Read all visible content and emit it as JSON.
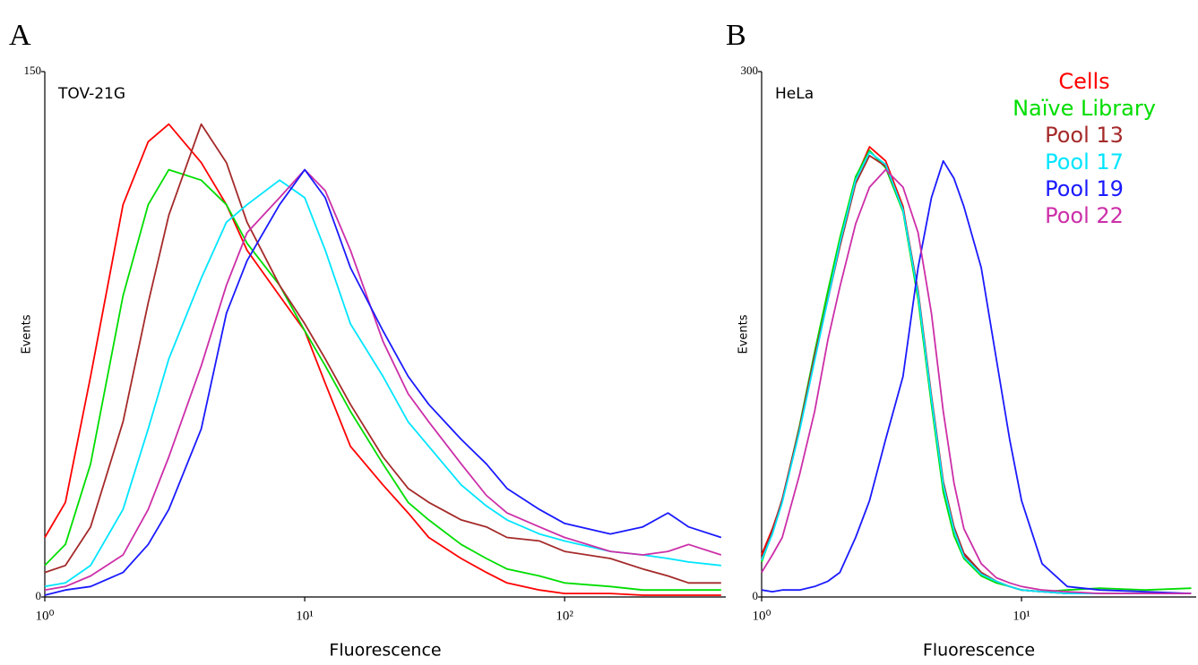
{
  "chart_data": [
    {
      "type": "line",
      "panel_label": "A",
      "annotation": "TOV-21G",
      "xlabel": "Fluorescence",
      "ylabel": "Events",
      "xscale": "log",
      "xlim": [
        1,
        417
      ],
      "ylim": [
        0,
        150
      ],
      "xticks": [
        {
          "value": 1,
          "label": "10⁰"
        },
        {
          "value": 10,
          "label": "10¹"
        },
        {
          "value": 100,
          "label": "10²"
        }
      ],
      "yticks": [
        0,
        150
      ],
      "x": [
        1,
        1.2,
        1.5,
        2,
        2.5,
        3,
        4,
        5,
        6,
        8,
        10,
        12,
        15,
        20,
        25,
        30,
        40,
        50,
        60,
        80,
        100,
        150,
        200,
        250,
        300,
        400
      ],
      "series": [
        {
          "color": "#ff0000",
          "values": [
            17,
            27,
            63,
            112,
            130,
            135,
            124,
            112,
            99,
            86,
            76,
            61,
            43,
            32,
            24,
            17,
            11,
            7,
            4,
            2,
            1,
            1,
            0.5,
            0.5,
            0.5,
            0.5
          ]
        },
        {
          "color": "#00dd00",
          "values": [
            9,
            15,
            38,
            86,
            112,
            122,
            119,
            112,
            101,
            89,
            76,
            66,
            53,
            38,
            27,
            22,
            15,
            11,
            8,
            6,
            4,
            3,
            2,
            2,
            2,
            2
          ]
        },
        {
          "color": "#a52a2a",
          "values": [
            7,
            9,
            20,
            50,
            84,
            109,
            135,
            124,
            107,
            89,
            78,
            68,
            55,
            40,
            31,
            27,
            22,
            20,
            17,
            16,
            13,
            11,
            8,
            6,
            4,
            4
          ]
        },
        {
          "color": "#00e5ff",
          "values": [
            3,
            4,
            9,
            25,
            48,
            68,
            91,
            107,
            112,
            119,
            114,
            99,
            78,
            63,
            50,
            43,
            32,
            26,
            22,
            18,
            16,
            13,
            12,
            11,
            10,
            9
          ]
        },
        {
          "color": "#cc2fa8",
          "values": [
            2,
            3,
            6,
            12,
            25,
            40,
            66,
            89,
            104,
            114,
            122,
            116,
            99,
            73,
            58,
            50,
            38,
            29,
            24,
            20,
            17,
            13,
            12,
            13,
            15,
            12
          ]
        },
        {
          "color": "#1a1aff",
          "values": [
            0.5,
            2,
            3,
            7,
            15,
            25,
            48,
            81,
            96,
            112,
            122,
            114,
            94,
            76,
            63,
            55,
            45,
            38,
            31,
            25,
            21,
            18,
            20,
            24,
            20,
            17
          ]
        }
      ]
    },
    {
      "type": "line",
      "panel_label": "B",
      "annotation": "HeLa",
      "xlabel": "Fluorescence",
      "ylabel": "Events",
      "xscale": "log",
      "xlim": [
        1,
        47
      ],
      "ylim": [
        0,
        300
      ],
      "xticks": [
        {
          "value": 1,
          "label": "10⁰"
        },
        {
          "value": 10,
          "label": "10¹"
        }
      ],
      "yticks": [
        0,
        300
      ],
      "legend": "upper right",
      "x": [
        1,
        1.1,
        1.2,
        1.4,
        1.6,
        1.8,
        2,
        2.3,
        2.6,
        3,
        3.5,
        4,
        4.5,
        5,
        5.5,
        6,
        7,
        8,
        9,
        10,
        12,
        15,
        20,
        30,
        45
      ],
      "series": [
        {
          "name": "Cells",
          "color": "#ff0000",
          "values": [
            24,
            39,
            55,
            96,
            136,
            172,
            203,
            239,
            257,
            249,
            223,
            172,
            111,
            65,
            39,
            24,
            14,
            9,
            6,
            4,
            3,
            2,
            2,
            2,
            2
          ]
        },
        {
          "name": "Naïve Library",
          "color": "#00dd00",
          "values": [
            20,
            37,
            55,
            98,
            140,
            175,
            205,
            240,
            255,
            245,
            220,
            170,
            110,
            60,
            35,
            22,
            12,
            8,
            6,
            4,
            3,
            4,
            5,
            4,
            5
          ]
        },
        {
          "name": "Pool 13",
          "color": "#a52a2a",
          "values": [
            22,
            38,
            56,
            97,
            138,
            170,
            200,
            236,
            252,
            246,
            222,
            175,
            115,
            66,
            40,
            25,
            14,
            9,
            6,
            4,
            3,
            2,
            2,
            2,
            2
          ]
        },
        {
          "name": "Pool 17",
          "color": "#00e5ff",
          "values": [
            21,
            36,
            54,
            95,
            135,
            170,
            202,
            238,
            254,
            247,
            221,
            173,
            113,
            64,
            38,
            23,
            13,
            9,
            6,
            4,
            3,
            2,
            2,
            2,
            2
          ]
        },
        {
          "name": "Pool 19",
          "color": "#1a1aff",
          "values": [
            4,
            3,
            4,
            4,
            6,
            9,
            14,
            34,
            55,
            90,
            126,
            188,
            228,
            249,
            239,
            223,
            188,
            136,
            90,
            55,
            19,
            6,
            4,
            3,
            2
          ]
        },
        {
          "name": "Pool 22",
          "color": "#cc2fa8",
          "values": [
            14,
            24,
            34,
            70,
            106,
            147,
            177,
            213,
            234,
            244,
            234,
            208,
            162,
            106,
            65,
            39,
            19,
            11,
            8,
            6,
            4,
            3,
            2,
            2,
            2
          ]
        }
      ]
    }
  ]
}
